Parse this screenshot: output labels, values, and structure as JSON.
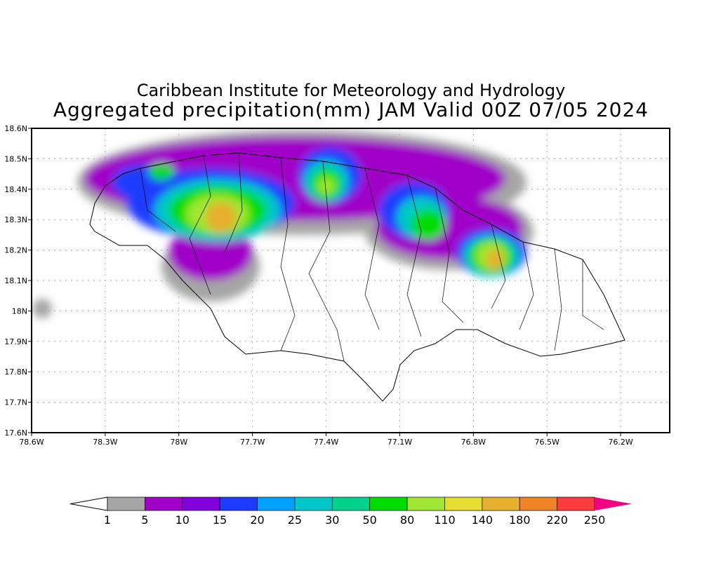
{
  "title": {
    "line1": "Caribbean Institute for Meteorology and Hydrology",
    "line2": "Aggregated precipitation(mm) JAM Valid 00Z 07/05 2024"
  },
  "map": {
    "lon_range": [
      -78.6,
      -76.0
    ],
    "lat_range": [
      17.6,
      18.6
    ],
    "lon_ticks": [
      {
        "value": -78.6,
        "label": "78.6W"
      },
      {
        "value": -78.3,
        "label": "78.3W"
      },
      {
        "value": -78.0,
        "label": "78W"
      },
      {
        "value": -77.7,
        "label": "77.7W"
      },
      {
        "value": -77.4,
        "label": "77.4W"
      },
      {
        "value": -77.1,
        "label": "77.1W"
      },
      {
        "value": -76.8,
        "label": "76.8W"
      },
      {
        "value": -76.5,
        "label": "76.5W"
      },
      {
        "value": -76.2,
        "label": "76.2W"
      }
    ],
    "lat_ticks": [
      {
        "value": 18.6,
        "label": "18.6N"
      },
      {
        "value": 18.5,
        "label": "18.5N"
      },
      {
        "value": 18.4,
        "label": "18.4N"
      },
      {
        "value": 18.3,
        "label": "18.3N"
      },
      {
        "value": 18.2,
        "label": "18.2N"
      },
      {
        "value": 18.1,
        "label": "18.1N"
      },
      {
        "value": 18.0,
        "label": "18N"
      },
      {
        "value": 17.9,
        "label": "17.9N"
      },
      {
        "value": 17.8,
        "label": "17.8N"
      },
      {
        "value": 17.7,
        "label": "17.7N"
      },
      {
        "value": 17.6,
        "label": "17.6N"
      }
    ]
  },
  "colorbar": {
    "labels": [
      "1",
      "5",
      "10",
      "15",
      "20",
      "25",
      "30",
      "50",
      "80",
      "110",
      "140",
      "180",
      "220",
      "250"
    ],
    "colors": [
      "#a6a6a6",
      "#a000c8",
      "#8200dc",
      "#1e3cff",
      "#00a0ff",
      "#00c8c8",
      "#00d28c",
      "#00dc00",
      "#a0e632",
      "#e6dc32",
      "#e6af2d",
      "#f08228",
      "#fa3c3c",
      "#f00082"
    ],
    "under_color": "#ffffff"
  }
}
